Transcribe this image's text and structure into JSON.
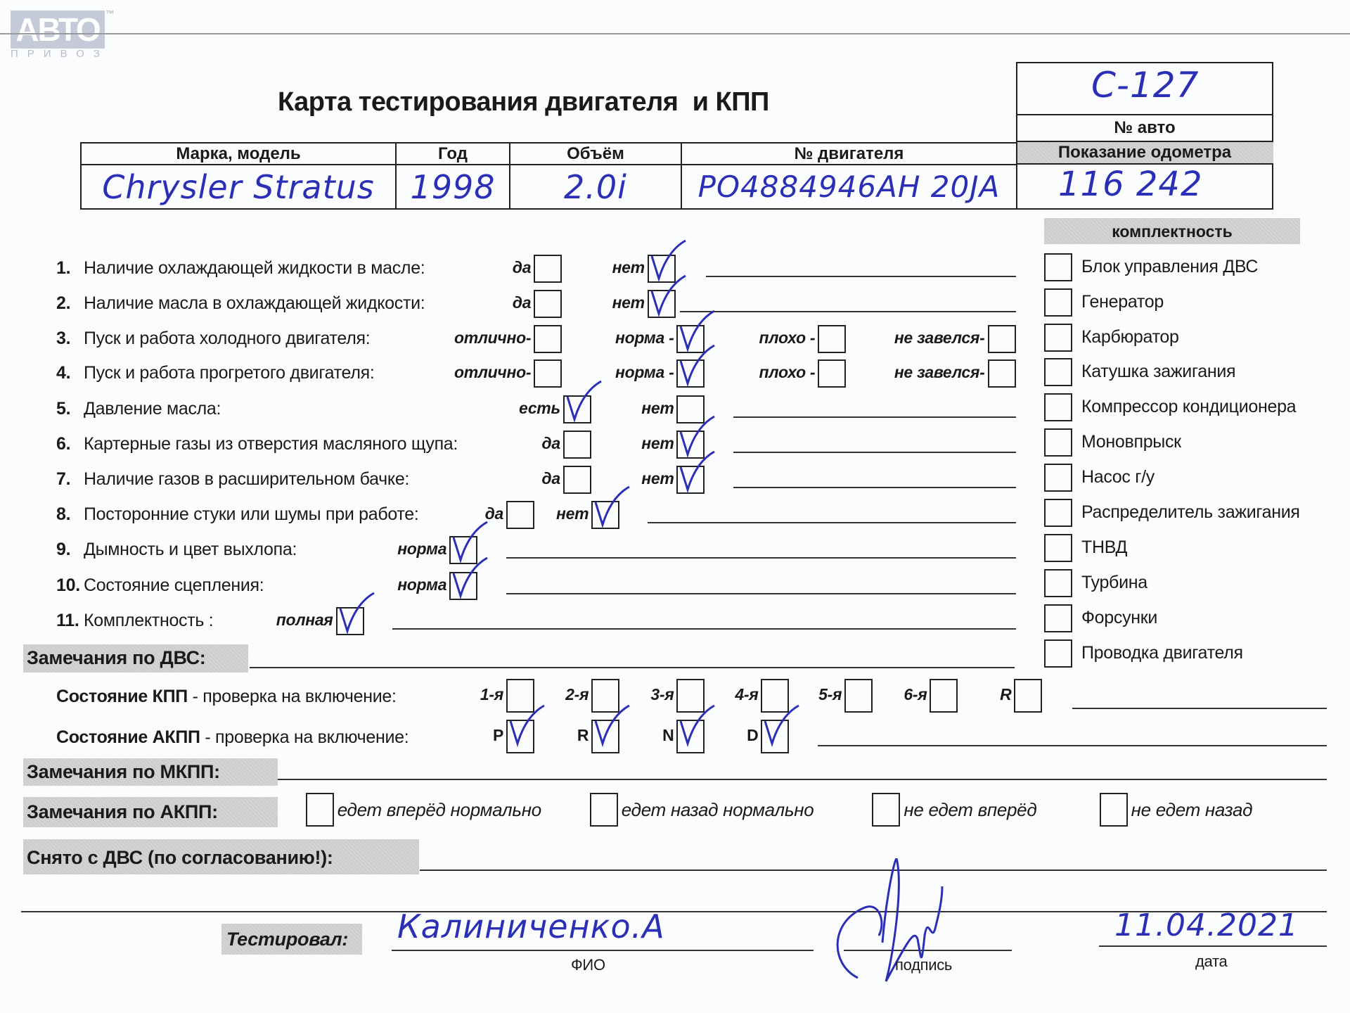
{
  "logo": {
    "brand": "АВТО",
    "sub": "ПРИВОЗ",
    "tm": "™"
  },
  "title": "Карта тестирования двигателя  и КПП",
  "car_number": {
    "label": "№ авто",
    "value": "С-127"
  },
  "odometer": {
    "label": "Показание одометра",
    "value": "116 242"
  },
  "vehicle_table": {
    "headers": [
      "Марка, модель",
      "Год",
      "Объём",
      "№ двигателя"
    ],
    "values": [
      "Chrysler Stratus",
      "1998",
      "2.0i",
      "PO4884946AH 20JA"
    ]
  },
  "checklist": [
    {
      "num": "1.",
      "label": "Наличие охлаждающей жидкости в масле:",
      "options": [
        {
          "label": "да",
          "checked": false
        },
        {
          "label": "нет",
          "checked": true
        }
      ]
    },
    {
      "num": "2.",
      "label": "Наличие масла в охлаждающей жидкости:",
      "options": [
        {
          "label": "да",
          "checked": false
        },
        {
          "label": "нет",
          "checked": true
        }
      ]
    },
    {
      "num": "3.",
      "label": "Пуск и работа холодного двигателя:",
      "options": [
        {
          "label": "отлично-",
          "checked": false
        },
        {
          "label": "норма -",
          "checked": true
        },
        {
          "label": "плохо -",
          "checked": false
        },
        {
          "label": "не завелся-",
          "checked": false
        }
      ]
    },
    {
      "num": "4.",
      "label": "Пуск и работа прогретого двигателя:",
      "options": [
        {
          "label": "отлично-",
          "checked": false
        },
        {
          "label": "норма -",
          "checked": true
        },
        {
          "label": "плохо -",
          "checked": false
        },
        {
          "label": "не завелся-",
          "checked": false
        }
      ]
    },
    {
      "num": "5.",
      "label": "Давление масла:",
      "options": [
        {
          "label": "есть",
          "checked": true
        },
        {
          "label": "нет",
          "checked": false
        }
      ]
    },
    {
      "num": "6.",
      "label": "Картерные газы из отверстия масляного щупа:",
      "options": [
        {
          "label": "да",
          "checked": false
        },
        {
          "label": "нет",
          "checked": true
        }
      ]
    },
    {
      "num": "7.",
      "label": "Наличие газов в расширительном бачке:",
      "options": [
        {
          "label": "да",
          "checked": false
        },
        {
          "label": "нет",
          "checked": true
        }
      ]
    },
    {
      "num": "8.",
      "label": "Посторонние стуки или шумы при работе:",
      "options": [
        {
          "label": "да",
          "checked": false
        },
        {
          "label": "нет",
          "checked": true
        }
      ]
    },
    {
      "num": "9.",
      "label": "Дымность и цвет выхлопа:",
      "options": [
        {
          "label": "норма",
          "checked": true
        }
      ]
    },
    {
      "num": "10.",
      "label": "Состояние сцепления:",
      "options": [
        {
          "label": "норма",
          "checked": true
        }
      ]
    },
    {
      "num": "11.",
      "label": "Комплектность :",
      "options": [
        {
          "label": "полная",
          "checked": true
        }
      ]
    }
  ],
  "completeness": {
    "title": "комплектность",
    "items": [
      {
        "label": "Блок управления ДВС",
        "checked": false
      },
      {
        "label": "Генератор",
        "checked": false
      },
      {
        "label": "Карбюратор",
        "checked": false
      },
      {
        "label": "Катушка зажигания",
        "checked": false
      },
      {
        "label": "Компрессор кондиционера",
        "checked": false
      },
      {
        "label": "Моновпрыск",
        "checked": false
      },
      {
        "label": "Насос г/у",
        "checked": false
      },
      {
        "label": "Распределитель зажигания",
        "checked": false
      },
      {
        "label": "ТНВД",
        "checked": false
      },
      {
        "label": "Турбина",
        "checked": false
      },
      {
        "label": "Форсунки",
        "checked": false
      },
      {
        "label": "Проводка двигателя",
        "checked": false
      }
    ]
  },
  "engine_remarks": {
    "label": "Замечания по ДВС:"
  },
  "manual_gearbox": {
    "label_bold": "Состояние КПП",
    "label_rest": " - проверка на включение:",
    "gears": [
      {
        "label": "1-я",
        "checked": false
      },
      {
        "label": "2-я",
        "checked": false
      },
      {
        "label": "3-я",
        "checked": false
      },
      {
        "label": "4-я",
        "checked": false
      },
      {
        "label": "5-я",
        "checked": false
      },
      {
        "label": "6-я",
        "checked": false
      },
      {
        "label": "R",
        "checked": false
      }
    ]
  },
  "auto_gearbox": {
    "label_bold": "Состояние АКПП",
    "label_rest": " - проверка на включение:",
    "gears": [
      {
        "label": "P",
        "checked": true
      },
      {
        "label": "R",
        "checked": true
      },
      {
        "label": "N",
        "checked": true
      },
      {
        "label": "D",
        "checked": true
      }
    ]
  },
  "manual_remarks": {
    "label": "Замечания по МКПП:"
  },
  "auto_remarks": {
    "label": "Замечания по АКПП:",
    "options": [
      {
        "label": "едет вперёд нормально",
        "checked": false
      },
      {
        "label": "едет назад нормально",
        "checked": false
      },
      {
        "label": "не едет вперёд",
        "checked": false
      },
      {
        "label": "не едет назад",
        "checked": false
      }
    ]
  },
  "removed": {
    "label": "Снято с ДВС (по согласованию!):"
  },
  "tester": {
    "label": "Тестировал:",
    "name": "Калиниченко.А",
    "name_caption": "ФИО",
    "signature_caption": "подпись",
    "date": "11.04.2021",
    "date_caption": "дата"
  },
  "colors": {
    "ink": "#2b2fb5",
    "gray_bar": "#d4d4d4"
  }
}
